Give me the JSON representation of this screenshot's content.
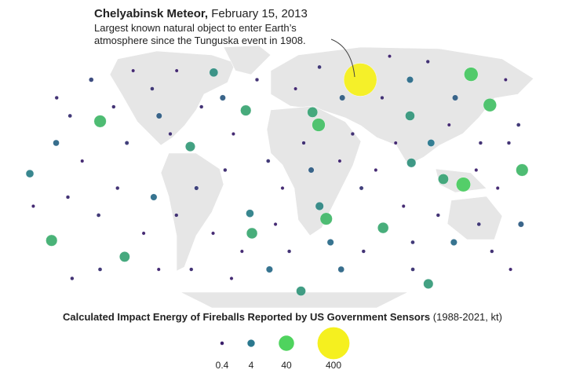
{
  "annotation": {
    "title": "Chelyabinsk Meteor,",
    "date": "February 15, 2013",
    "lines": [
      "Largest known natural object to enter Earth’s",
      "atmosphere since the Tunguska event in 1908."
    ]
  },
  "legend": {
    "title": "Calculated Impact Energy of Fireballs Reported by US Government Sensors",
    "subtitle": "(1988-2021, kt)",
    "values": [
      0.4,
      4,
      40,
      400
    ]
  },
  "fireballs": [
    {
      "lon": 61,
      "lat": 55,
      "kt": 440
    },
    {
      "lon": 150,
      "lat": 58,
      "kt": 30
    },
    {
      "lon": 154,
      "lat": 41,
      "kt": 25
    },
    {
      "lon": -132,
      "lat": 32,
      "kt": 20
    },
    {
      "lon": -27,
      "lat": 38,
      "kt": 13
    },
    {
      "lon": 22,
      "lat": 37,
      "kt": 12
    },
    {
      "lon": 26,
      "lat": 30,
      "kt": 25
    },
    {
      "lon": 93,
      "lat": 35,
      "kt": 9
    },
    {
      "lon": -55,
      "lat": 59,
      "kt": 7
    },
    {
      "lon": -65,
      "lat": 18,
      "kt": 10
    },
    {
      "lon": 167,
      "lat": 5,
      "kt": 20
    },
    {
      "lon": 126,
      "lat": -3,
      "kt": 33
    },
    {
      "lon": 112,
      "lat": 0,
      "kt": 12
    },
    {
      "lon": 90,
      "lat": 9,
      "kt": 8
    },
    {
      "lon": -23,
      "lat": -19,
      "kt": 5
    },
    {
      "lon": -22,
      "lat": -30,
      "kt": 14
    },
    {
      "lon": 31,
      "lat": -22,
      "kt": 20
    },
    {
      "lon": 26,
      "lat": -15,
      "kt": 6
    },
    {
      "lon": 72,
      "lat": -27,
      "kt": 14
    },
    {
      "lon": -118,
      "lat": -43,
      "kt": 12
    },
    {
      "lon": -168,
      "lat": -34,
      "kt": 16
    },
    {
      "lon": 116,
      "lat": -58,
      "kt": 10
    },
    {
      "lon": 15,
      "lat": -62,
      "kt": 9
    },
    {
      "lon": -176,
      "lat": 3,
      "kt": 5
    },
    {
      "lon": -170,
      "lat": 45,
      "kt": 0.5
    },
    {
      "lon": -150,
      "lat": 55,
      "kt": 1
    },
    {
      "lon": -120,
      "lat": 60,
      "kt": 0.4
    },
    {
      "lon": -100,
      "lat": 50,
      "kt": 0.6
    },
    {
      "lon": -90,
      "lat": 35,
      "kt": 2
    },
    {
      "lon": -80,
      "lat": 25,
      "kt": 0.5
    },
    {
      "lon": -110,
      "lat": 20,
      "kt": 0.7
    },
    {
      "lon": -140,
      "lat": 10,
      "kt": 0.4
    },
    {
      "lon": -160,
      "lat": 20,
      "kt": 2.5
    },
    {
      "lon": -150,
      "lat": -10,
      "kt": 0.5
    },
    {
      "lon": -130,
      "lat": -20,
      "kt": 0.6
    },
    {
      "lon": -100,
      "lat": -30,
      "kt": 0.4
    },
    {
      "lon": -90,
      "lat": -10,
      "kt": 3
    },
    {
      "lon": -75,
      "lat": -20,
      "kt": 0.5
    },
    {
      "lon": -60,
      "lat": -5,
      "kt": 0.8
    },
    {
      "lon": -50,
      "lat": -30,
      "kt": 0.4
    },
    {
      "lon": -40,
      "lat": 5,
      "kt": 0.5
    },
    {
      "lon": -35,
      "lat": 25,
      "kt": 0.4
    },
    {
      "lon": -45,
      "lat": 45,
      "kt": 2
    },
    {
      "lon": -20,
      "lat": 55,
      "kt": 0.5
    },
    {
      "lon": -10,
      "lat": 10,
      "kt": 0.6
    },
    {
      "lon": 0,
      "lat": -5,
      "kt": 0.4
    },
    {
      "lon": 5,
      "lat": -40,
      "kt": 0.5
    },
    {
      "lon": -10,
      "lat": -50,
      "kt": 3
    },
    {
      "lon": -40,
      "lat": -55,
      "kt": 0.4
    },
    {
      "lon": -70,
      "lat": -50,
      "kt": 0.5
    },
    {
      "lon": -140,
      "lat": -50,
      "kt": 0.6
    },
    {
      "lon": -175,
      "lat": -15,
      "kt": 0.4
    },
    {
      "lon": -165,
      "lat": -55,
      "kt": 0.5
    },
    {
      "lon": 10,
      "lat": 50,
      "kt": 0.4
    },
    {
      "lon": 30,
      "lat": 62,
      "kt": 0.6
    },
    {
      "lon": 45,
      "lat": 45,
      "kt": 2
    },
    {
      "lon": 50,
      "lat": 25,
      "kt": 0.5
    },
    {
      "lon": 40,
      "lat": 10,
      "kt": 0.4
    },
    {
      "lon": 55,
      "lat": -5,
      "kt": 0.7
    },
    {
      "lon": 60,
      "lat": -40,
      "kt": 0.5
    },
    {
      "lon": 45,
      "lat": -50,
      "kt": 2.5
    },
    {
      "lon": 85,
      "lat": -15,
      "kt": 0.4
    },
    {
      "lon": 95,
      "lat": -35,
      "kt": 0.6
    },
    {
      "lon": 80,
      "lat": 20,
      "kt": 0.4
    },
    {
      "lon": 75,
      "lat": 45,
      "kt": 0.5
    },
    {
      "lon": 100,
      "lat": 55,
      "kt": 3
    },
    {
      "lon": 90,
      "lat": 68,
      "kt": 0.4
    },
    {
      "lon": 120,
      "lat": 65,
      "kt": 0.5
    },
    {
      "lon": 130,
      "lat": 45,
      "kt": 2
    },
    {
      "lon": 120,
      "lat": 30,
      "kt": 0.4
    },
    {
      "lon": 105,
      "lat": 20,
      "kt": 4
    },
    {
      "lon": 140,
      "lat": 20,
      "kt": 0.5
    },
    {
      "lon": 150,
      "lat": -5,
      "kt": 0.4
    },
    {
      "lon": 140,
      "lat": -25,
      "kt": 0.6
    },
    {
      "lon": 125,
      "lat": -35,
      "kt": 3
    },
    {
      "lon": 155,
      "lat": -40,
      "kt": 0.5
    },
    {
      "lon": 170,
      "lat": -25,
      "kt": 2
    },
    {
      "lon": 175,
      "lat": -50,
      "kt": 0.4
    },
    {
      "lon": 170,
      "lat": 30,
      "kt": 0.6
    },
    {
      "lon": 175,
      "lat": 55,
      "kt": 0.4
    },
    {
      "lon": 160,
      "lat": 20,
      "kt": 0.5
    },
    {
      "lon": -5,
      "lat": -25,
      "kt": 0.4
    },
    {
      "lon": 15,
      "lat": 20,
      "kt": 0.5
    },
    {
      "lon": 20,
      "lat": 5,
      "kt": 2
    },
    {
      "lon": -125,
      "lat": 40,
      "kt": 0.5
    },
    {
      "lon": -85,
      "lat": 60,
      "kt": 0.4
    },
    {
      "lon": -60,
      "lat": 40,
      "kt": 0.5
    },
    {
      "lon": -155,
      "lat": 35,
      "kt": 0.6
    },
    {
      "lon": 65,
      "lat": 5,
      "kt": 0.4
    },
    {
      "lon": 110,
      "lat": -20,
      "kt": 0.5
    },
    {
      "lon": -30,
      "lat": -40,
      "kt": 0.4
    },
    {
      "lon": 35,
      "lat": -35,
      "kt": 3
    },
    {
      "lon": -115,
      "lat": -5,
      "kt": 0.5
    },
    {
      "lon": 135,
      "lat": 5,
      "kt": 0.4
    },
    {
      "lon": 100,
      "lat": -50,
      "kt": 0.6
    },
    {
      "lon": -95,
      "lat": -50,
      "kt": 0.4
    }
  ]
}
